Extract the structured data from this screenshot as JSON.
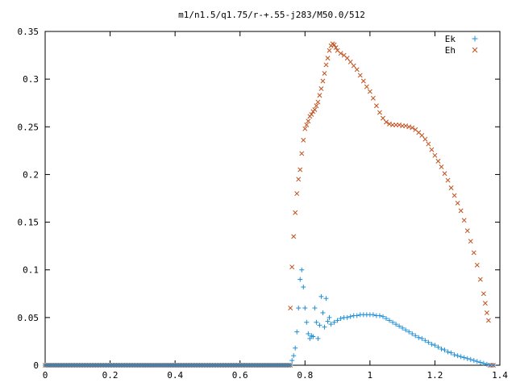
{
  "chart_data": {
    "type": "scatter",
    "title": "m1/n1.5/q1.75/r-+.55-j283/M50.0/512",
    "xlabel": "",
    "ylabel": "",
    "xlim": [
      0,
      1.4
    ],
    "ylim": [
      0,
      0.35
    ],
    "x_ticks": [
      0,
      0.2,
      0.4,
      0.6,
      0.8,
      1,
      1.2,
      1.4
    ],
    "x_tick_labels": [
      "0",
      "0.2",
      "0.4",
      "0.6",
      "0.8",
      "1",
      "1.2",
      "1.4"
    ],
    "y_ticks": [
      0,
      0.05,
      0.1,
      0.15,
      0.2,
      0.25,
      0.3,
      0.35
    ],
    "y_tick_labels": [
      "0",
      "0.05",
      "0.1",
      "0.15",
      "0.2",
      "0.25",
      "0.3",
      "0.35"
    ],
    "grid": false,
    "legend_position": "top-right",
    "series": [
      {
        "name": "Ek",
        "marker": "plus",
        "color": "#1f8fd6",
        "points": [
          [
            0.0,
            0.0
          ],
          [
            0.1,
            0.0
          ],
          [
            0.2,
            0.0
          ],
          [
            0.3,
            0.0
          ],
          [
            0.4,
            0.0
          ],
          [
            0.5,
            0.0
          ],
          [
            0.6,
            0.0
          ],
          [
            0.7,
            0.0
          ],
          [
            0.755,
            0.0
          ],
          [
            0.76,
            0.005
          ],
          [
            0.765,
            0.01
          ],
          [
            0.77,
            0.018
          ],
          [
            0.775,
            0.035
          ],
          [
            0.78,
            0.06
          ],
          [
            0.785,
            0.09
          ],
          [
            0.79,
            0.1
          ],
          [
            0.795,
            0.082
          ],
          [
            0.8,
            0.06
          ],
          [
            0.805,
            0.045
          ],
          [
            0.81,
            0.033
          ],
          [
            0.815,
            0.028
          ],
          [
            0.82,
            0.031
          ],
          [
            0.825,
            0.03
          ],
          [
            0.83,
            0.06
          ],
          [
            0.835,
            0.045
          ],
          [
            0.84,
            0.028
          ],
          [
            0.845,
            0.042
          ],
          [
            0.85,
            0.072
          ],
          [
            0.855,
            0.055
          ],
          [
            0.86,
            0.04
          ],
          [
            0.865,
            0.07
          ],
          [
            0.87,
            0.046
          ],
          [
            0.875,
            0.05
          ],
          [
            0.88,
            0.043
          ],
          [
            0.89,
            0.045
          ],
          [
            0.9,
            0.047
          ],
          [
            0.91,
            0.049
          ],
          [
            0.92,
            0.05
          ],
          [
            0.93,
            0.05
          ],
          [
            0.94,
            0.051
          ],
          [
            0.95,
            0.052
          ],
          [
            0.96,
            0.052
          ],
          [
            0.97,
            0.053
          ],
          [
            0.98,
            0.053
          ],
          [
            0.99,
            0.053
          ],
          [
            1.0,
            0.053
          ],
          [
            1.01,
            0.053
          ],
          [
            1.02,
            0.052
          ],
          [
            1.03,
            0.052
          ],
          [
            1.04,
            0.051
          ],
          [
            1.05,
            0.049
          ],
          [
            1.06,
            0.047
          ],
          [
            1.07,
            0.045
          ],
          [
            1.08,
            0.043
          ],
          [
            1.09,
            0.041
          ],
          [
            1.1,
            0.039
          ],
          [
            1.11,
            0.037
          ],
          [
            1.12,
            0.035
          ],
          [
            1.13,
            0.033
          ],
          [
            1.14,
            0.031
          ],
          [
            1.15,
            0.029
          ],
          [
            1.16,
            0.028
          ],
          [
            1.17,
            0.026
          ],
          [
            1.18,
            0.024
          ],
          [
            1.19,
            0.022
          ],
          [
            1.2,
            0.021
          ],
          [
            1.21,
            0.019
          ],
          [
            1.22,
            0.017
          ],
          [
            1.23,
            0.016
          ],
          [
            1.24,
            0.014
          ],
          [
            1.25,
            0.013
          ],
          [
            1.26,
            0.011
          ],
          [
            1.27,
            0.01
          ],
          [
            1.28,
            0.009
          ],
          [
            1.29,
            0.008
          ],
          [
            1.3,
            0.007
          ],
          [
            1.31,
            0.006
          ],
          [
            1.32,
            0.005
          ],
          [
            1.33,
            0.004
          ],
          [
            1.34,
            0.003
          ],
          [
            1.35,
            0.002
          ],
          [
            1.36,
            0.001
          ],
          [
            1.37,
            0.0
          ],
          [
            1.38,
            0.0
          ]
        ]
      },
      {
        "name": "Eh",
        "marker": "cross",
        "color": "#c0501c",
        "points": [
          [
            0.0,
            0.0
          ],
          [
            0.1,
            0.0
          ],
          [
            0.2,
            0.0
          ],
          [
            0.3,
            0.0
          ],
          [
            0.4,
            0.0
          ],
          [
            0.5,
            0.0
          ],
          [
            0.6,
            0.0
          ],
          [
            0.7,
            0.0
          ],
          [
            0.755,
            0.0
          ],
          [
            0.755,
            0.06
          ],
          [
            0.76,
            0.103
          ],
          [
            0.765,
            0.135
          ],
          [
            0.77,
            0.16
          ],
          [
            0.775,
            0.18
          ],
          [
            0.78,
            0.195
          ],
          [
            0.785,
            0.205
          ],
          [
            0.79,
            0.222
          ],
          [
            0.795,
            0.236
          ],
          [
            0.8,
            0.248
          ],
          [
            0.805,
            0.252
          ],
          [
            0.81,
            0.256
          ],
          [
            0.815,
            0.261
          ],
          [
            0.82,
            0.263
          ],
          [
            0.825,
            0.266
          ],
          [
            0.83,
            0.268
          ],
          [
            0.835,
            0.272
          ],
          [
            0.84,
            0.276
          ],
          [
            0.845,
            0.283
          ],
          [
            0.85,
            0.29
          ],
          [
            0.855,
            0.298
          ],
          [
            0.86,
            0.306
          ],
          [
            0.865,
            0.315
          ],
          [
            0.87,
            0.322
          ],
          [
            0.875,
            0.33
          ],
          [
            0.88,
            0.335
          ],
          [
            0.885,
            0.337
          ],
          [
            0.89,
            0.336
          ],
          [
            0.895,
            0.333
          ],
          [
            0.9,
            0.33
          ],
          [
            0.91,
            0.327
          ],
          [
            0.92,
            0.325
          ],
          [
            0.93,
            0.322
          ],
          [
            0.94,
            0.318
          ],
          [
            0.95,
            0.314
          ],
          [
            0.96,
            0.31
          ],
          [
            0.97,
            0.304
          ],
          [
            0.98,
            0.298
          ],
          [
            0.99,
            0.292
          ],
          [
            1.0,
            0.287
          ],
          [
            1.01,
            0.28
          ],
          [
            1.02,
            0.272
          ],
          [
            1.03,
            0.265
          ],
          [
            1.04,
            0.259
          ],
          [
            1.05,
            0.255
          ],
          [
            1.06,
            0.253
          ],
          [
            1.07,
            0.252
          ],
          [
            1.08,
            0.252
          ],
          [
            1.09,
            0.252
          ],
          [
            1.1,
            0.251
          ],
          [
            1.11,
            0.251
          ],
          [
            1.12,
            0.25
          ],
          [
            1.13,
            0.249
          ],
          [
            1.14,
            0.247
          ],
          [
            1.15,
            0.244
          ],
          [
            1.16,
            0.241
          ],
          [
            1.17,
            0.237
          ],
          [
            1.18,
            0.232
          ],
          [
            1.19,
            0.226
          ],
          [
            1.2,
            0.22
          ],
          [
            1.21,
            0.214
          ],
          [
            1.22,
            0.208
          ],
          [
            1.23,
            0.201
          ],
          [
            1.24,
            0.194
          ],
          [
            1.25,
            0.186
          ],
          [
            1.26,
            0.178
          ],
          [
            1.27,
            0.17
          ],
          [
            1.28,
            0.162
          ],
          [
            1.29,
            0.152
          ],
          [
            1.3,
            0.141
          ],
          [
            1.31,
            0.13
          ],
          [
            1.32,
            0.118
          ],
          [
            1.33,
            0.105
          ],
          [
            1.34,
            0.09
          ],
          [
            1.35,
            0.075
          ],
          [
            1.355,
            0.065
          ],
          [
            1.36,
            0.055
          ],
          [
            1.365,
            0.047
          ],
          [
            1.37,
            0.0
          ],
          [
            1.38,
            0.0
          ]
        ]
      }
    ]
  }
}
